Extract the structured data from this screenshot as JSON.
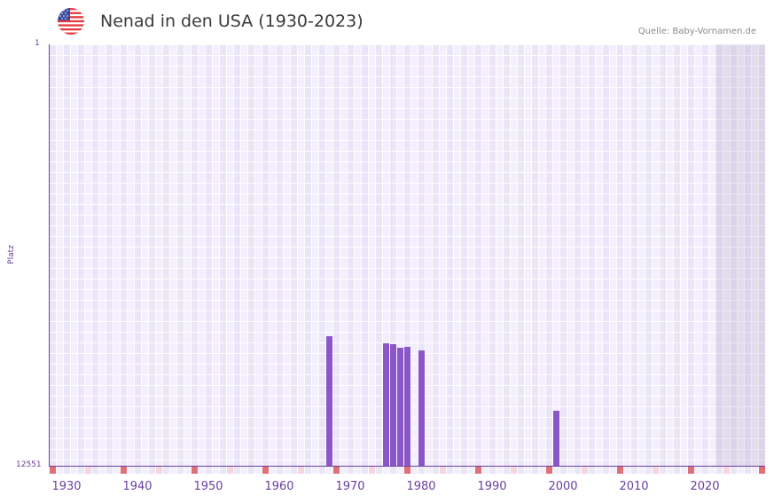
{
  "header": {
    "flag_icon": "us-flag-icon",
    "title": "Nenad in den USA (1930-2023)",
    "source": "Quelle: Baby-Vornamen.de"
  },
  "colors": {
    "bar": "#8b57c8",
    "axis": "#6a3fa0",
    "decade_marker": "#e07078",
    "half_decade_marker": "#f3d6de",
    "plot_bg": "#efeafa"
  },
  "chart_data": {
    "type": "bar",
    "title": "Nenad in den USA (1930-2023)",
    "xlabel": "",
    "ylabel": "Platz",
    "y_inverted": true,
    "ylim": [
      12551,
      1
    ],
    "x_range": [
      1928,
      2028
    ],
    "x_ticks": [
      "1930",
      "1940",
      "1950",
      "1960",
      "1970",
      "1980",
      "1990",
      "2000",
      "2010",
      "2020"
    ],
    "y_ticks": [
      "1",
      "12551"
    ],
    "grid": true,
    "shaded_from_year": 2022,
    "categories": [
      "1967",
      "1975",
      "1976",
      "1977",
      "1978",
      "1980",
      "1999"
    ],
    "values": [
      8694,
      8905,
      8931,
      9037,
      9011,
      9116,
      10913
    ]
  },
  "axis": {
    "y_top": "1",
    "y_bottom": "12551",
    "y_title": "Platz",
    "x_labels": [
      {
        "label": "1930",
        "year": 1930
      },
      {
        "label": "1940",
        "year": 1940
      },
      {
        "label": "1950",
        "year": 1950
      },
      {
        "label": "1960",
        "year": 1960
      },
      {
        "label": "1970",
        "year": 1970
      },
      {
        "label": "1980",
        "year": 1980
      },
      {
        "label": "1990",
        "year": 1990
      },
      {
        "label": "2000",
        "year": 2000
      },
      {
        "label": "2010",
        "year": 2010
      },
      {
        "label": "2020",
        "year": 2020
      }
    ]
  }
}
